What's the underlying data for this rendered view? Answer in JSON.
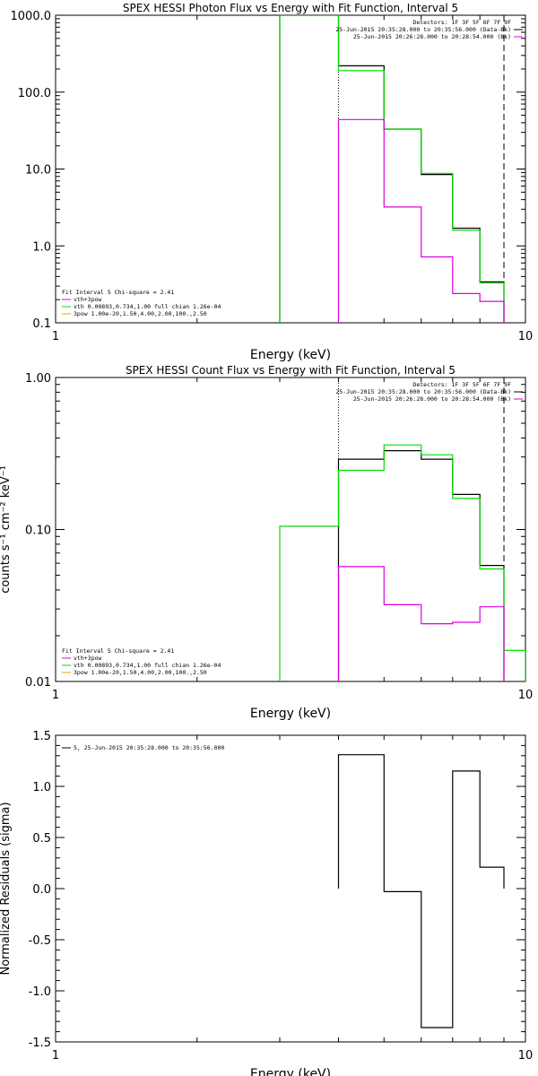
{
  "colors": {
    "background": "#ffffff",
    "axis": "#000000",
    "total": "#000000",
    "green": "#00dd00",
    "magenta": "#dd00dd",
    "orange": "#ddaa00"
  },
  "chart_data": [
    {
      "type": "line",
      "title": "SPEX HESSI Photon Flux vs Energy with Fit Function, Interval 5",
      "xlabel": "Energy (keV)",
      "ylabel": "",
      "xscale": "log",
      "yscale": "log",
      "xlim": [
        1,
        10
      ],
      "ylim": [
        0.1,
        1000
      ],
      "xticks": [
        "1",
        "10"
      ],
      "yticks": [
        "0.1",
        "1.0",
        "10.0",
        "100.0",
        "1000.0"
      ],
      "legend_right": [
        "Detectors: 1F 3F 5F 6F 7F 9F",
        "25-Jun-2015 20:35:28.000 to 20:35:56.000 (Data-Bk)",
        "25-Jun-2015 20:26:28.000 to 20:28:54.000 (Bk)"
      ],
      "legend_left": [
        "Fit Interval 5   Chi-square = 2.41",
        "vth+3pow",
        "vth 0.00893,0.734,1.00  full chian 1.26e-04",
        "3pow 1.00e-20,1.50,4.00,2.00,100.,2.50"
      ],
      "edges": [
        3.0,
        4.0,
        5.0,
        6.0,
        7.0,
        8.0,
        9.0
      ],
      "series": [
        {
          "name": "Data-Bk",
          "color": "#000000",
          "values": [
            1000.0,
            220.0,
            33.0,
            8.5,
            1.7,
            0.34
          ]
        },
        {
          "name": "vth+3pow",
          "color": "#00dd00",
          "values": [
            1000.0,
            190.0,
            33.0,
            8.8,
            1.6,
            0.33
          ]
        },
        {
          "name": "Bk",
          "color": "#dd00dd",
          "values": [
            null,
            44.0,
            3.2,
            0.72,
            0.24,
            0.19
          ]
        }
      ],
      "vlines": [
        {
          "x": 4.0,
          "style": "dotted"
        },
        {
          "x": 9.0,
          "style": "dashed"
        }
      ]
    },
    {
      "type": "line",
      "title": "SPEX HESSI Count Flux vs Energy with Fit Function, Interval 5",
      "xlabel": "Energy (keV)",
      "ylabel": "counts s⁻¹ cm⁻² keV⁻¹",
      "xscale": "log",
      "yscale": "log",
      "xlim": [
        1,
        10
      ],
      "ylim": [
        0.01,
        1
      ],
      "xticks": [
        "1",
        "10"
      ],
      "yticks": [
        "0.01",
        "0.10",
        "1.00"
      ],
      "legend_right": [
        "Detectors: 1F 3F 5F 6F 7F 9F",
        "25-Jun-2015 20:35:28.000 to 20:35:56.000 (Data-Bk)",
        "25-Jun-2015 20:26:28.000 to 20:28:54.000 (Bk)"
      ],
      "legend_left": [
        "Fit Interval 5   Chi-square = 2.41",
        "vth+3pow",
        "vth 0.00893,0.734,1.00  full chian 1.26e-04",
        "3pow 1.00e-20,1.50,4.00,2.00,100.,2.50"
      ],
      "edges": [
        3.0,
        4.0,
        5.0,
        6.0,
        7.0,
        8.0,
        9.0,
        10.0
      ],
      "series": [
        {
          "name": "Data-Bk",
          "color": "#000000",
          "values": [
            null,
            0.29,
            0.33,
            0.29,
            0.17,
            0.058,
            null
          ]
        },
        {
          "name": "vth+3pow",
          "color": "#00dd00",
          "values": [
            0.105,
            0.245,
            0.36,
            0.31,
            0.16,
            0.055,
            0.016
          ]
        },
        {
          "name": "Bk",
          "color": "#dd00dd",
          "values": [
            null,
            0.057,
            0.032,
            0.024,
            0.0245,
            0.031,
            null
          ]
        }
      ],
      "vlines": [
        {
          "x": 4.0,
          "style": "dotted"
        },
        {
          "x": 9.0,
          "style": "dashed"
        }
      ]
    },
    {
      "type": "line",
      "title": "",
      "xlabel": "Energy (keV)",
      "ylabel": "Normalized Residuals (sigma)",
      "xscale": "log",
      "yscale": "linear",
      "xlim": [
        1,
        10
      ],
      "ylim": [
        -1.5,
        1.5
      ],
      "xticks": [
        "1",
        "10"
      ],
      "yticks": [
        "-1.5",
        "-1.0",
        "-0.5",
        "0.0",
        "0.5",
        "1.0",
        "1.5"
      ],
      "legend_left": [
        "5, 25-Jun-2015 20:35:28.000 to 20:35:56.000"
      ],
      "edges": [
        4.0,
        5.0,
        6.0,
        7.0,
        8.0,
        9.0
      ],
      "series": [
        {
          "name": "5, 25-Jun-2015 20:35:28.000 to 20:35:56.000",
          "color": "#000000",
          "values": [
            1.31,
            -0.03,
            -1.36,
            1.15,
            0.21
          ]
        }
      ]
    }
  ]
}
